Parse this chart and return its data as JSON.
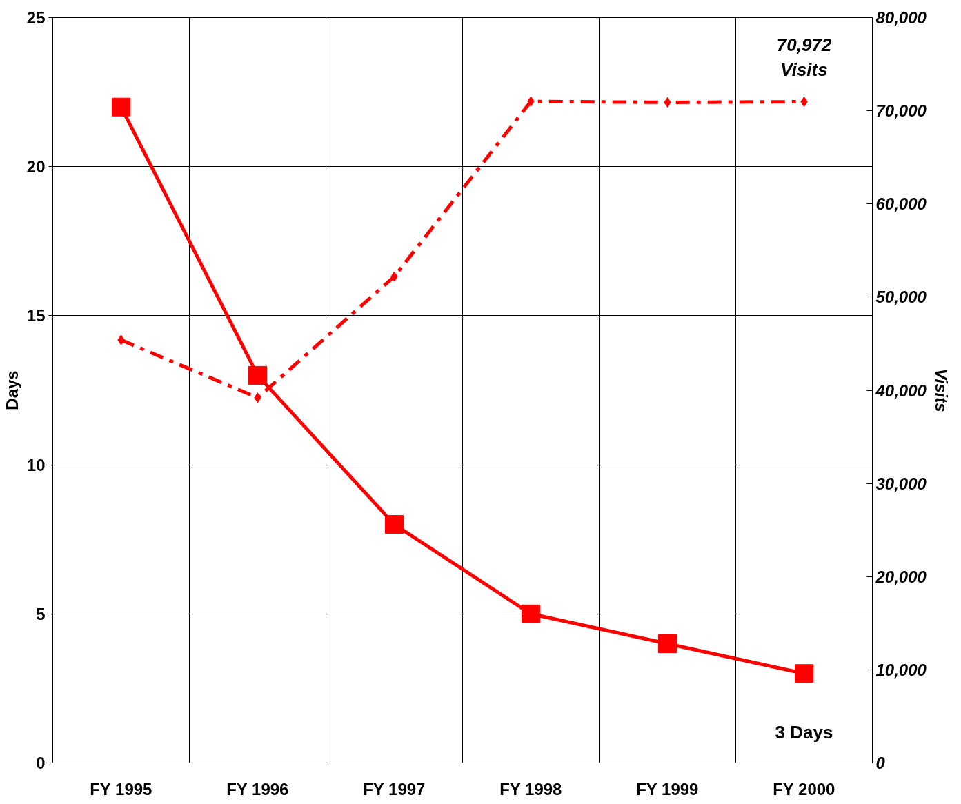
{
  "chart_data": {
    "type": "line",
    "categories": [
      "FY 1995",
      "FY 1996",
      "FY 1997",
      "FY 1998",
      "FY 1999",
      "FY 2000"
    ],
    "ylabel": "Days",
    "y2label": "Visits",
    "ylim": [
      0,
      25
    ],
    "yticks": [
      0,
      5,
      10,
      15,
      20,
      25
    ],
    "y2lim": [
      0,
      80000
    ],
    "y2ticks": [
      {
        "value": 0,
        "label": "0"
      },
      {
        "value": 10000,
        "label": "10,000"
      },
      {
        "value": 20000,
        "label": "20,000"
      },
      {
        "value": 30000,
        "label": "30,000"
      },
      {
        "value": 40000,
        "label": "40,000"
      },
      {
        "value": 50000,
        "label": "50,000"
      },
      {
        "value": 60000,
        "label": "60,000"
      },
      {
        "value": 70000,
        "label": "70,000"
      },
      {
        "value": 80000,
        "label": "80,000"
      }
    ],
    "grid": true,
    "series": [
      {
        "color": "#ff0000",
        "values": [
          22,
          13,
          8,
          5,
          4,
          3
        ],
        "marker": "square",
        "line_style": "solid"
      },
      {
        "color": "#ff0000",
        "values": [
          45400,
          39200,
          52200,
          71000,
          70900,
          70972
        ],
        "marker": "diamond",
        "line_style": "dashed",
        "axis": "y2"
      }
    ],
    "annotations": [
      "3 Days",
      "70,972\nVisits"
    ]
  }
}
